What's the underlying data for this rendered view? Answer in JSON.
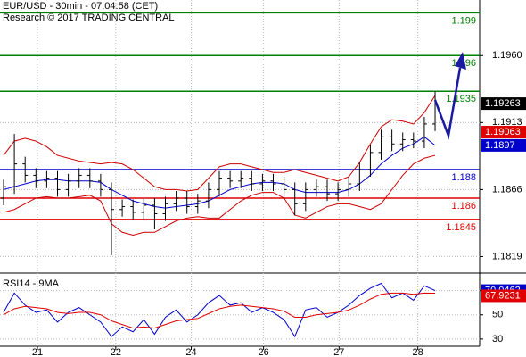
{
  "chart_data": {
    "type": "ohlc",
    "title": "EUR/USD - 30min - 07:04:58 (CET)",
    "subtitle": "Research © 2017 TRADING CENTRAL",
    "xlim": [
      -0.33,
      44.13
    ],
    "xticks": [
      {
        "value": 3.14,
        "label": "21"
      },
      {
        "value": 10.4,
        "label": "22"
      },
      {
        "value": 17.4,
        "label": "24"
      },
      {
        "value": 24.1,
        "label": "26"
      },
      {
        "value": 31.1,
        "label": "27"
      },
      {
        "value": 38.4,
        "label": "28"
      }
    ],
    "ylim": [
      1.1808,
      1.1999
    ],
    "yticks": [
      {
        "value": 1.196,
        "label": "1.1960"
      },
      1.1913,
      1.1866,
      1.1819
    ],
    "grid": true,
    "bar_color": "#000000",
    "open": [
      1.186,
      1.1868,
      1.1884,
      1.1876,
      1.1872,
      1.1874,
      1.1866,
      1.1872,
      1.1876,
      1.1872,
      1.1866,
      1.1852,
      1.1854,
      1.185,
      1.1855,
      1.1849,
      1.1856,
      1.186,
      1.1854,
      1.1858,
      1.1866,
      1.1874,
      1.1872,
      1.1874,
      1.187,
      1.1872,
      1.187,
      1.1866,
      1.1856,
      1.1866,
      1.1868,
      1.1863,
      1.1866,
      1.187,
      1.188,
      1.1892,
      1.1903,
      1.1898,
      1.1901,
      1.19,
      1.1912
    ],
    "high": [
      1.1873,
      1.1905,
      1.1889,
      1.1881,
      1.1879,
      1.1879,
      1.1877,
      1.1881,
      1.1881,
      1.1877,
      1.1871,
      1.1859,
      1.1859,
      1.186,
      1.186,
      1.1861,
      1.1865,
      1.1865,
      1.1863,
      1.1871,
      1.1879,
      1.1879,
      1.1879,
      1.1879,
      1.1877,
      1.1877,
      1.1875,
      1.1871,
      1.1871,
      1.1873,
      1.1873,
      1.1871,
      1.1875,
      1.1885,
      1.1897,
      1.1908,
      1.1908,
      1.1906,
      1.1906,
      1.1917,
      1.1935
    ],
    "low": [
      1.1855,
      1.1863,
      1.1871,
      1.1867,
      1.1867,
      1.1861,
      1.1861,
      1.1867,
      1.1867,
      1.1861,
      1.182,
      1.1847,
      1.1845,
      1.1845,
      1.1838,
      1.1844,
      1.1851,
      1.1849,
      1.1849,
      1.1853,
      1.1861,
      1.1867,
      1.1867,
      1.1865,
      1.1865,
      1.1865,
      1.1861,
      1.1848,
      1.1851,
      1.1861,
      1.1858,
      1.1858,
      1.1861,
      1.1865,
      1.1875,
      1.1887,
      1.1893,
      1.1893,
      1.1895,
      1.1895,
      1.1907
    ],
    "close": [
      1.1868,
      1.1884,
      1.1876,
      1.1872,
      1.1874,
      1.1866,
      1.1872,
      1.1876,
      1.1872,
      1.1866,
      1.1852,
      1.1854,
      1.185,
      1.1855,
      1.1849,
      1.1856,
      1.186,
      1.1854,
      1.1858,
      1.1866,
      1.1874,
      1.1872,
      1.1874,
      1.187,
      1.1872,
      1.187,
      1.1866,
      1.1856,
      1.1866,
      1.1868,
      1.1863,
      1.1866,
      1.187,
      1.188,
      1.1892,
      1.1903,
      1.1898,
      1.1901,
      1.19,
      1.1912,
      1.19263
    ],
    "close_box_color": "#000000",
    "series": [
      {
        "color": "#cc0000",
        "values": [
          1.189,
          1.19,
          1.1902,
          1.19,
          1.1896,
          1.189,
          1.1888,
          1.1886,
          1.1885,
          1.1884,
          1.1885,
          1.1884,
          1.188,
          1.1874,
          1.1868,
          1.1866,
          1.1866,
          1.1865,
          1.1866,
          1.1874,
          1.1882,
          1.1884,
          1.1884,
          1.1882,
          1.188,
          1.1878,
          1.1878,
          1.188,
          1.1878,
          1.1876,
          1.1874,
          1.1872,
          1.1875,
          1.1885,
          1.1898,
          1.191,
          1.1915,
          1.1914,
          1.1912,
          1.192,
          1.1932
        ]
      },
      {
        "color": "#cc0000",
        "values": [
          1.185,
          1.1852,
          1.1856,
          1.186,
          1.1861,
          1.186,
          1.186,
          1.1861,
          1.1862,
          1.1858,
          1.1842,
          1.1836,
          1.1834,
          1.1836,
          1.1836,
          1.184,
          1.1844,
          1.1846,
          1.1847,
          1.1846,
          1.1846,
          1.1852,
          1.1858,
          1.1862,
          1.1864,
          1.1864,
          1.186,
          1.1848,
          1.1846,
          1.185,
          1.1854,
          1.1856,
          1.1856,
          1.1854,
          1.1852,
          1.1856,
          1.1866,
          1.1876,
          1.1884,
          1.1888,
          1.189
        ]
      },
      {
        "color": "#0000cc",
        "values": [
          1.1866,
          1.1868,
          1.187,
          1.1872,
          1.1873,
          1.1873,
          1.1872,
          1.1872,
          1.1872,
          1.1871,
          1.1866,
          1.1862,
          1.1858,
          1.1856,
          1.1854,
          1.1853,
          1.1854,
          1.1855,
          1.1856,
          1.1858,
          1.1862,
          1.1866,
          1.1868,
          1.187,
          1.1871,
          1.1871,
          1.187,
          1.1866,
          1.1864,
          1.1864,
          1.1864,
          1.1864,
          1.1866,
          1.187,
          1.1876,
          1.1884,
          1.189,
          1.1895,
          1.1898,
          1.1903,
          1.1897
        ]
      }
    ],
    "price_markers": [
      {
        "value": 1.19063,
        "color": "#e00000"
      }
    ],
    "levels": [
      {
        "value": 1.199,
        "color": "#008000"
      },
      {
        "value": 1.196,
        "color": "#008000"
      },
      {
        "value": 1.1935,
        "color": "#008000"
      },
      {
        "value": 1.188,
        "color": "#0000cc"
      },
      {
        "value": 1.186,
        "color": "#e00000"
      },
      {
        "value": 1.1845,
        "color": "#e00000"
      }
    ],
    "rsi": {
      "title": "RSI14 - 9MA",
      "ylim": [
        24,
        83
      ],
      "yticks": [
        70,
        50,
        30
      ],
      "series": [
        {
          "color": "#0000cc",
          "values": [
            52,
            68,
            58,
            52,
            54,
            44,
            52,
            56,
            50,
            44,
            32,
            40,
            36,
            46,
            34,
            48,
            54,
            44,
            50,
            60,
            66,
            58,
            60,
            52,
            56,
            52,
            46,
            32,
            54,
            56,
            48,
            52,
            58,
            66,
            72,
            76,
            64,
            68,
            62,
            74,
            70.0462
          ]
        },
        {
          "color": "#e00000",
          "values": [
            50,
            55,
            57,
            56,
            55,
            52,
            51,
            52,
            52,
            50,
            45,
            42,
            39,
            40,
            39,
            42,
            45,
            46,
            47,
            51,
            55,
            57,
            58,
            57,
            56,
            55,
            53,
            48,
            48,
            50,
            51,
            52,
            54,
            58,
            63,
            67,
            68,
            68,
            67,
            68,
            67.9231
          ]
        }
      ]
    }
  }
}
